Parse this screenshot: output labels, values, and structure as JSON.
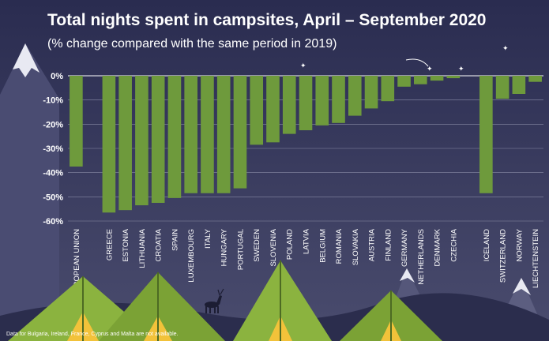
{
  "title": "Total nights spent in campsites, April – September 2020",
  "subtitle": "(% change compared with the same period in 2019)",
  "footnote": "Data for Bulgaria, Ireland, France, Cyprus and Malta are not available.",
  "colors": {
    "bar": "#6e9a3c",
    "background_top": "#2a2c50",
    "background_bottom": "#4a4c6e",
    "text": "#ffffff",
    "grid": "#8a8ca6",
    "tent": "#8bb33f",
    "mountain": "#5c5e80"
  },
  "chart_data": {
    "type": "bar",
    "title": "Total nights spent in campsites, April – September 2020",
    "subtitle": "(% change compared with the same period in 2019)",
    "xlabel": "",
    "ylabel": "",
    "ylim": [
      -60,
      0
    ],
    "yticks": [
      0,
      -10,
      -20,
      -30,
      -40,
      -50,
      -60
    ],
    "ytick_labels": [
      "0%",
      "-10%",
      "-20%",
      "-30%",
      "-40%",
      "-50%",
      "-60%"
    ],
    "grid": true,
    "categories": [
      "EUROPEAN UNION",
      "",
      "GREECE",
      "ESTONIA",
      "LITHUANIA",
      "CROATIA",
      "SPAIN",
      "LUXEMBOURG",
      "ITALY",
      "HUNGARY",
      "PORTUGAL",
      "SWEDEN",
      "SLOVENIA",
      "POLAND",
      "LATVIA",
      "BELGIUM",
      "ROMANIA",
      "SLOVAKIA",
      "AUSTRIA",
      "FINLAND",
      "GERMANY",
      "NETHERLANDS",
      "DENMARK",
      "CZECHIA",
      "",
      "ICELAND",
      "SWITZERLAND",
      "NORWAY",
      "LIECHTENSTEIN"
    ],
    "values": [
      -37.5,
      null,
      -56.5,
      -55.5,
      -53.5,
      -52.5,
      -50.5,
      -48.5,
      -48.5,
      -48.5,
      -46.5,
      -28.5,
      -27.5,
      -24,
      -22.5,
      -20.5,
      -19.5,
      -16.5,
      -13.5,
      -10.5,
      -4.5,
      -3.5,
      -2,
      -1,
      null,
      -48.5,
      -9.5,
      -7.5,
      -2.5
    ]
  }
}
